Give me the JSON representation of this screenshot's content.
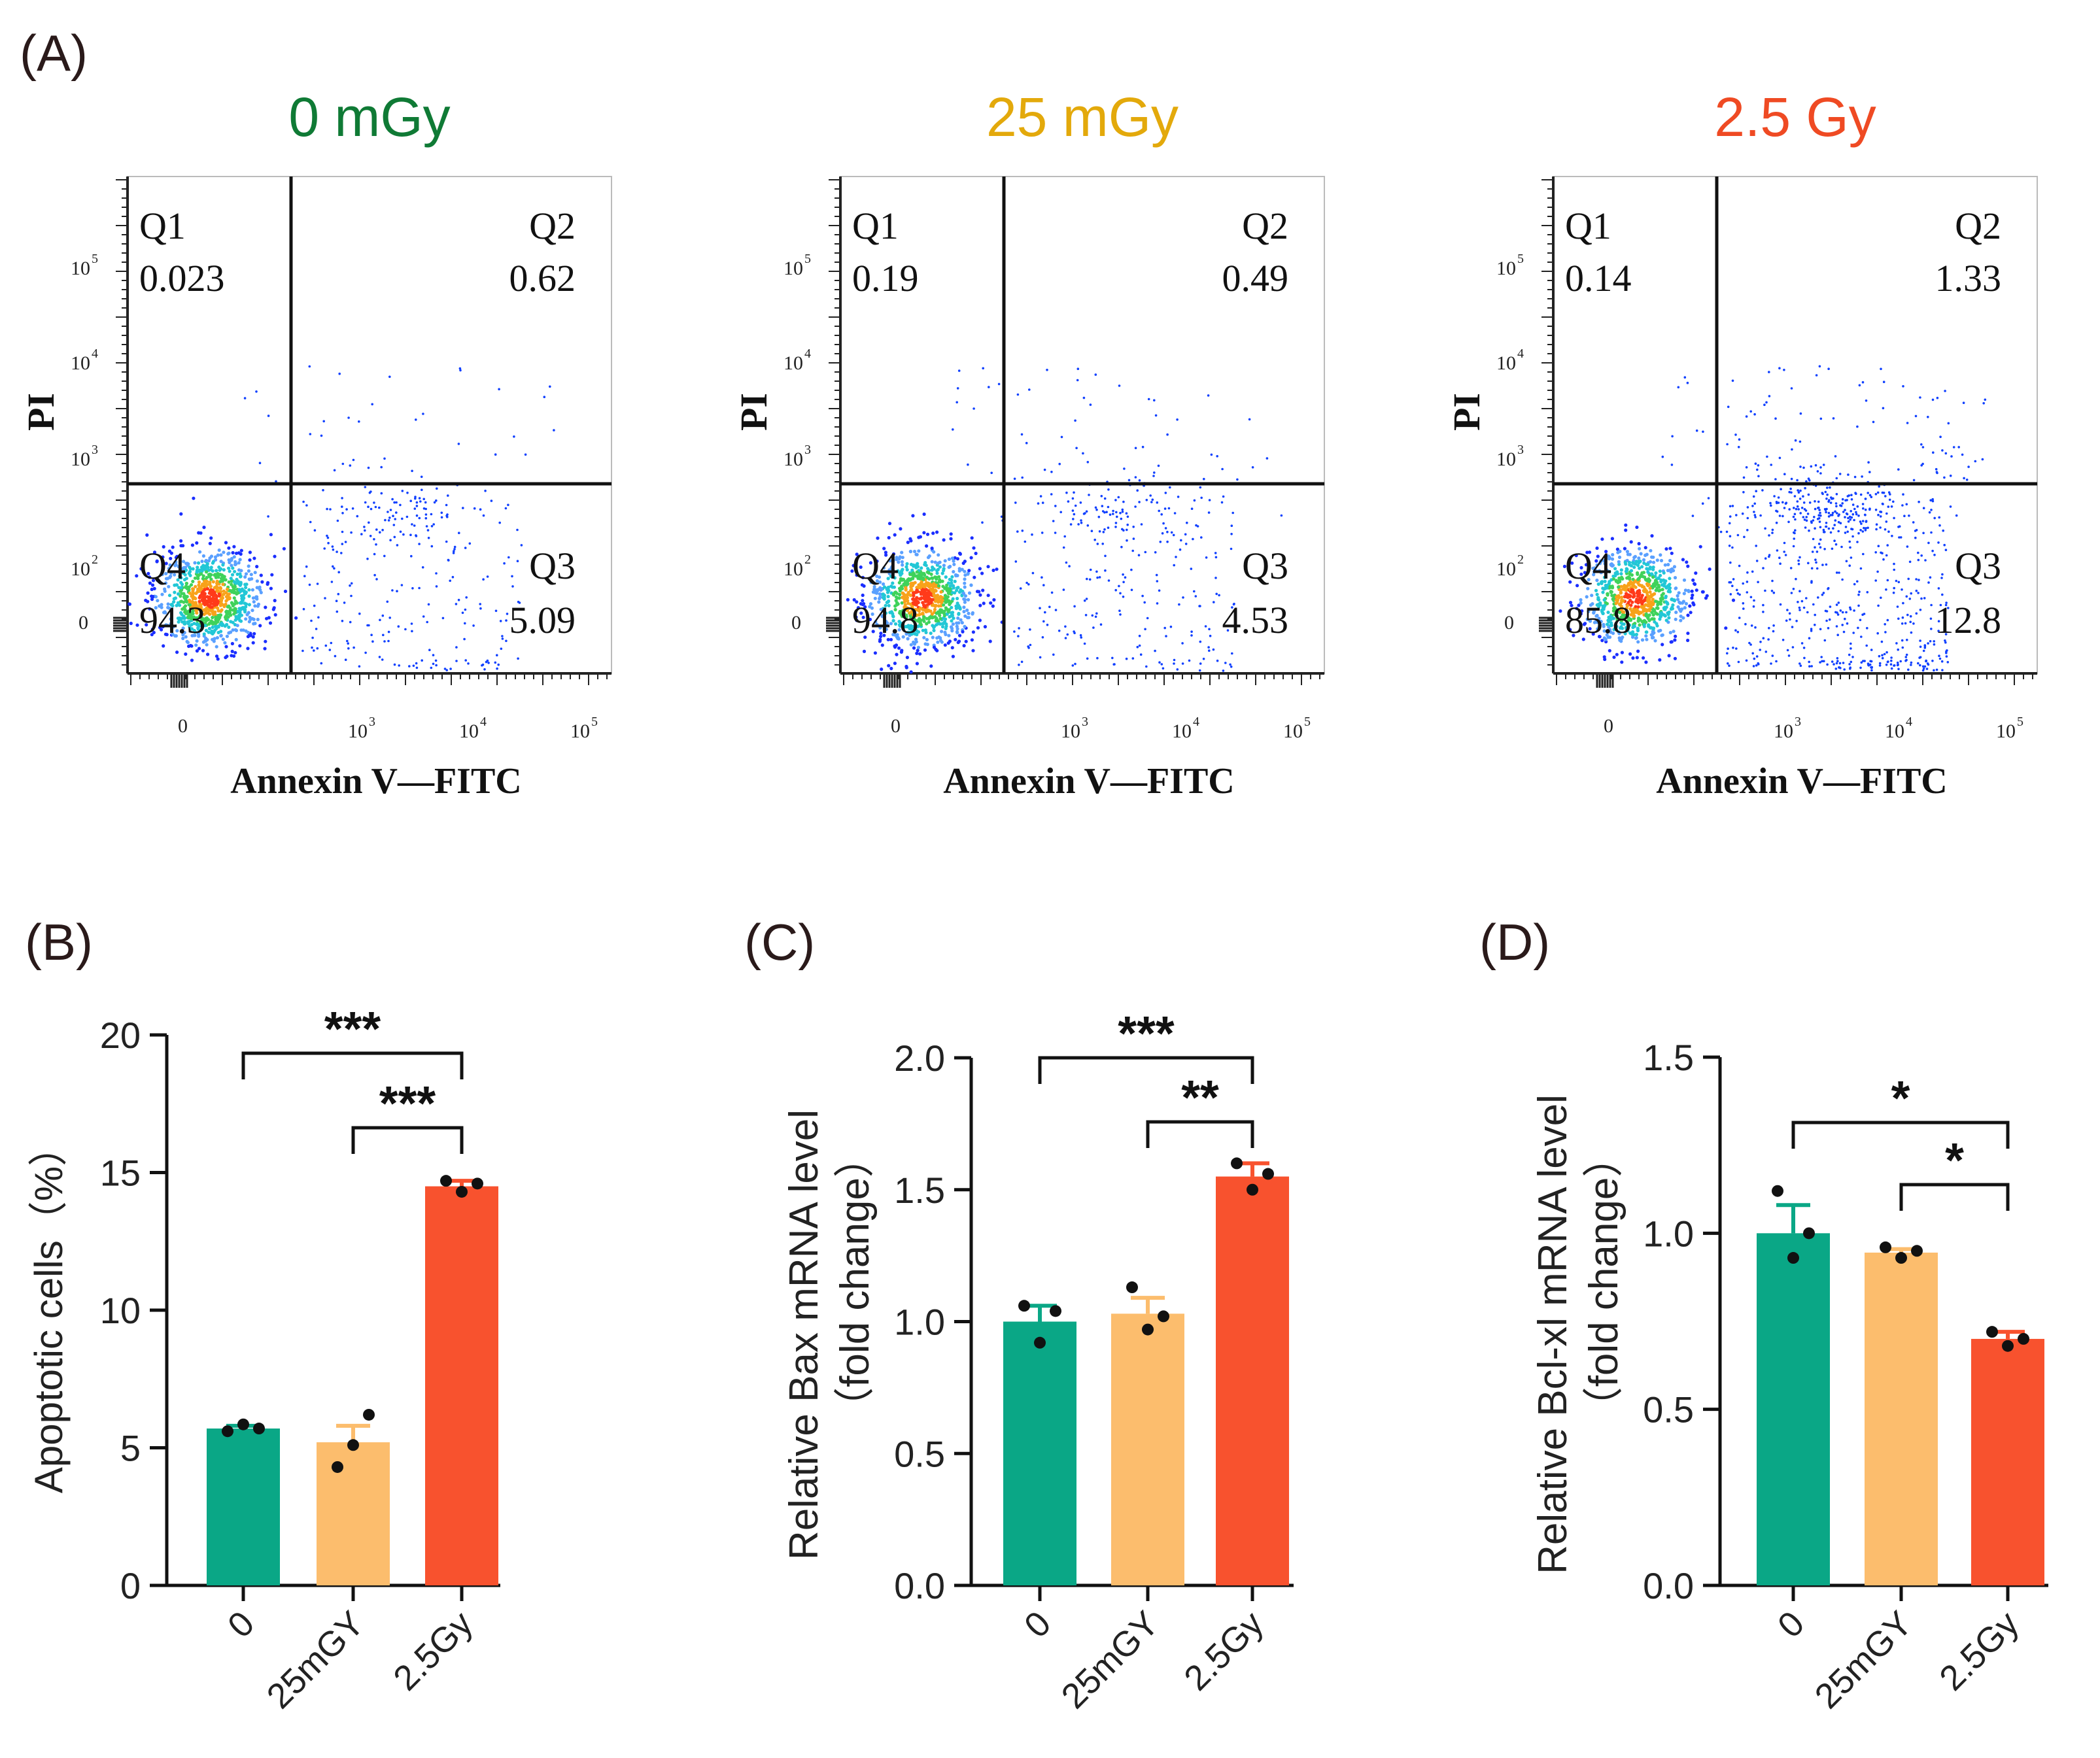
{
  "panel_labels": {
    "A": "(A)",
    "B": "(B)",
    "C": "(C)",
    "D": "(D)"
  },
  "colors": {
    "control": "#0f7a35",
    "low": "#e3a90b",
    "high": "#ef4a23",
    "bar_control": "#0aa786",
    "bar_low": "#fcbd6d",
    "bar_high": "#f8522e",
    "dots": "#1040ff"
  },
  "chart_data": [
    {
      "panel": "A",
      "type": "scatter",
      "title": "0 mGy",
      "xlabel": "Annexin V—FITC",
      "ylabel": "PI",
      "quadrants": {
        "Q1": "0.023",
        "Q2": "0.62",
        "Q3": "5.09",
        "Q4": "94.3"
      }
    },
    {
      "panel": "A",
      "type": "scatter",
      "title": "25 mGy",
      "xlabel": "Annexin V—FITC",
      "ylabel": "PI",
      "quadrants": {
        "Q1": "0.19",
        "Q2": "0.49",
        "Q3": "4.53",
        "Q4": "94.8"
      }
    },
    {
      "panel": "A",
      "type": "scatter",
      "title": "2.5 Gy",
      "xlabel": "Annexin V—FITC",
      "ylabel": "PI",
      "quadrants": {
        "Q1": "0.14",
        "Q2": "1.33",
        "Q3": "12.8",
        "Q4": "85.8"
      }
    },
    {
      "panel": "B",
      "type": "bar",
      "categories": [
        "0",
        "25mGY",
        "2.5Gy"
      ],
      "values": [
        5.7,
        5.2,
        14.5
      ],
      "errors": [
        0.1,
        0.6,
        0.2
      ],
      "points": [
        [
          5.6,
          5.85,
          5.7
        ],
        [
          4.3,
          5.1,
          6.2
        ],
        [
          14.7,
          14.3,
          14.6
        ]
      ],
      "ylabel": "Apoptotic cells（%）",
      "ylim": [
        0,
        20
      ],
      "yticks": [
        "0",
        "5",
        "10",
        "15",
        "20"
      ],
      "significance": [
        {
          "from": 0,
          "to": 2,
          "label": "***"
        },
        {
          "from": 1,
          "to": 2,
          "label": "***"
        }
      ]
    },
    {
      "panel": "C",
      "type": "bar",
      "categories": [
        "0",
        "25mGY",
        "2.5Gy"
      ],
      "values": [
        1.0,
        1.03,
        1.55
      ],
      "errors": [
        0.06,
        0.06,
        0.05
      ],
      "points": [
        [
          1.06,
          0.92,
          1.04
        ],
        [
          1.13,
          0.97,
          1.02
        ],
        [
          1.6,
          1.5,
          1.56
        ]
      ],
      "ylabel_line1": "Relative Bax mRNA level",
      "ylabel_line2": "（fold change）",
      "ylim": [
        0,
        2
      ],
      "yticks": [
        "0.0",
        "0.5",
        "1.0",
        "1.5",
        "2.0"
      ],
      "significance": [
        {
          "from": 0,
          "to": 2,
          "label": "***"
        },
        {
          "from": 1,
          "to": 2,
          "label": "**"
        }
      ]
    },
    {
      "panel": "D",
      "type": "bar",
      "categories": [
        "0",
        "25mGY",
        "2.5Gy"
      ],
      "values": [
        1.0,
        0.945,
        0.7
      ],
      "errors": [
        0.08,
        0.01,
        0.02
      ],
      "points": [
        [
          1.12,
          0.93,
          1.0
        ],
        [
          0.96,
          0.93,
          0.95
        ],
        [
          0.72,
          0.68,
          0.7
        ]
      ],
      "ylabel_line1": "Relative Bcl-xl mRNA level",
      "ylabel_line2": "（fold change）",
      "ylim": [
        0,
        1.5
      ],
      "yticks": [
        "0.0",
        "0.5",
        "1.0",
        "1.5"
      ],
      "significance": [
        {
          "from": 0,
          "to": 2,
          "label": "*"
        },
        {
          "from": 1,
          "to": 2,
          "label": "*"
        }
      ]
    }
  ]
}
